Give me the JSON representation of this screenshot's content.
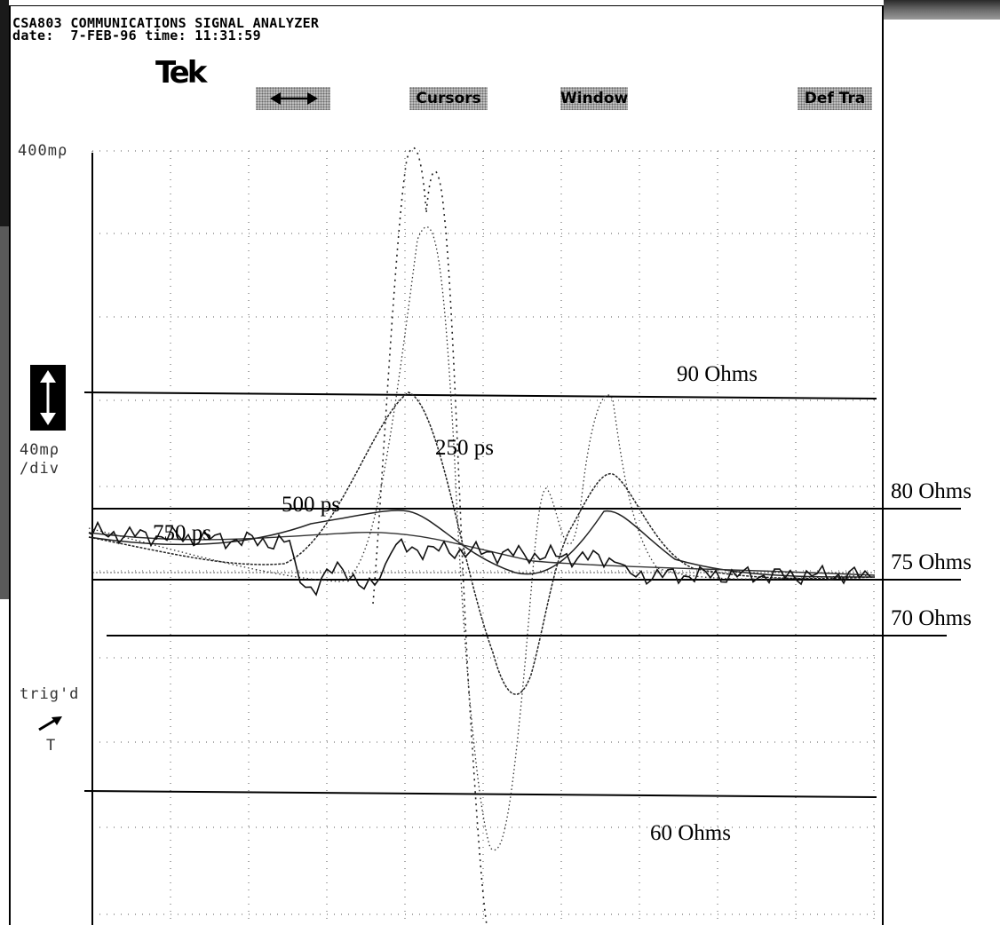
{
  "header": {
    "instrument": "CSA803 COMMUNICATIONS SIGNAL ANALYZER",
    "date_line": "date:  7-FEB-96 time: 11:31:59",
    "logo": "Tek"
  },
  "menu": {
    "items": [
      {
        "label": "",
        "icon": "horizontal-double-arrow-icon"
      },
      {
        "label": "Cursors"
      },
      {
        "label": "Window"
      },
      {
        "label": "Def Tra"
      }
    ]
  },
  "left_panel": {
    "top_scale": "400mρ",
    "vertical_scale": "40mρ",
    "per_div": "/div",
    "trigger_status": "trig'd",
    "trigger_symbol": "T",
    "icons": [
      "vertical-double-arrow-icon",
      "trigger-arrow-icon"
    ]
  },
  "impedance_labels": [
    "90 Ohms",
    "80 Ohms",
    "75 Ohms",
    "70 Ohms",
    "60 Ohms"
  ],
  "risetime_labels": [
    "250 ps",
    "500 ps",
    "750 ps"
  ],
  "colors": {
    "trace": "#000000",
    "menu_bg": "#bdbdbd",
    "background": "#ffffff"
  }
}
